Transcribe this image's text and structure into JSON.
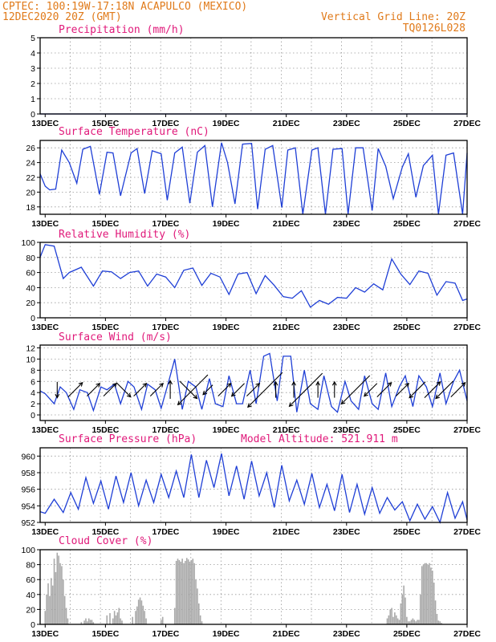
{
  "header": {
    "line1_left": "CPTEC:   100:19W-17:18N  ACAPULCO (MEXICO)",
    "line2_left": "12DEC2020 20Z (GMT)",
    "line2_right": "Vertical Grid Line: 20Z",
    "line3_right": "TQ0126L028",
    "model_altitude": "Model Altitude: 521.911 m"
  },
  "colors": {
    "header": "#e07a1a",
    "panel_title": "#e0197a",
    "series": "#1f3fd6",
    "cloud": "#a9a9a9"
  },
  "x_axis": {
    "tick_labels": [
      "13DEC",
      "15DEC",
      "17DEC",
      "19DEC",
      "21DEC",
      "23DEC",
      "25DEC",
      "27DEC"
    ],
    "start_day": 12.833,
    "end_day": 27.0,
    "tick_days": [
      13,
      15,
      17,
      19,
      21,
      23,
      25,
      27
    ],
    "vertical_grid": "20Z"
  },
  "chart_data": [
    {
      "type": "line",
      "title": "Precipitation (mm/h)",
      "ylim": [
        0,
        5
      ],
      "yticks": [
        0,
        1,
        2,
        3,
        4,
        5
      ],
      "grid": true,
      "x": [
        12.83,
        27.0
      ],
      "series": [
        {
          "values": [
            0,
            0
          ]
        }
      ]
    },
    {
      "type": "line",
      "title": "Surface Temperature (nC)",
      "ylim": [
        17,
        27
      ],
      "yticks": [
        18,
        20,
        22,
        24,
        26
      ],
      "grid": true,
      "x": [
        12.83,
        13.0,
        13.15,
        13.35,
        13.55,
        13.8,
        14.05,
        14.25,
        14.5,
        14.8,
        15.05,
        15.25,
        15.5,
        15.85,
        16.05,
        16.3,
        16.55,
        16.85,
        17.05,
        17.3,
        17.55,
        17.8,
        18.05,
        18.3,
        18.55,
        18.85,
        19.05,
        19.3,
        19.55,
        19.85,
        20.05,
        20.3,
        20.55,
        20.85,
        21.05,
        21.3,
        21.55,
        21.85,
        22.05,
        22.3,
        22.55,
        22.85,
        23.05,
        23.3,
        23.55,
        23.85,
        24.05,
        24.3,
        24.55,
        24.85,
        25.05,
        25.3,
        25.55,
        25.85,
        26.05,
        26.3,
        26.55,
        26.85,
        27.0
      ],
      "series": [
        {
          "values": [
            22.5,
            20.8,
            20.3,
            20.4,
            25.7,
            24.0,
            21.2,
            25.8,
            26.2,
            19.7,
            25.4,
            25.3,
            19.5,
            25.3,
            25.9,
            19.8,
            25.6,
            25.2,
            18.9,
            25.3,
            26.1,
            18.5,
            25.4,
            26.3,
            18.0,
            26.7,
            24.0,
            18.4,
            26.5,
            26.6,
            17.7,
            25.8,
            26.3,
            17.9,
            25.7,
            26.0,
            16.8,
            25.7,
            26.0,
            16.5,
            25.8,
            25.9,
            16.5,
            26.0,
            26.0,
            17.5,
            25.9,
            23.5,
            19.1,
            23.4,
            25.2,
            19.3,
            23.6,
            25.0,
            16.8,
            25.0,
            25.3,
            17.0,
            25.3
          ]
        }
      ]
    },
    {
      "type": "line",
      "title": "Relative Humidity (%)",
      "ylim": [
        0,
        100
      ],
      "yticks": [
        0,
        20,
        40,
        60,
        80,
        100
      ],
      "grid": true,
      "x": [
        12.83,
        13.0,
        13.3,
        13.6,
        13.8,
        14.2,
        14.6,
        14.9,
        15.2,
        15.5,
        15.8,
        16.1,
        16.4,
        16.7,
        17.0,
        17.3,
        17.6,
        17.9,
        18.2,
        18.5,
        18.8,
        19.1,
        19.4,
        19.7,
        20.0,
        20.3,
        20.6,
        20.9,
        21.2,
        21.5,
        21.8,
        22.1,
        22.4,
        22.7,
        23.0,
        23.3,
        23.6,
        23.9,
        24.2,
        24.5,
        24.8,
        25.1,
        25.4,
        25.7,
        26.0,
        26.3,
        26.6,
        26.85,
        27.0
      ],
      "series": [
        {
          "values": [
            80,
            97,
            95,
            52,
            60,
            67,
            42,
            62,
            61,
            52,
            60,
            62,
            42,
            58,
            54,
            40,
            63,
            66,
            43,
            59,
            54,
            31,
            58,
            60,
            32,
            56,
            43,
            28,
            26,
            36,
            14,
            23,
            18,
            27,
            26,
            40,
            34,
            45,
            37,
            78,
            58,
            44,
            62,
            59,
            30,
            48,
            46,
            23,
            25
          ]
        }
      ]
    },
    {
      "type": "line",
      "title": "Surface Wind (m/s)",
      "ylim": [
        -1,
        12.5
      ],
      "yticks": [
        0,
        2,
        4,
        6,
        8,
        10,
        12
      ],
      "grid": true,
      "x": [
        12.83,
        13.0,
        13.3,
        13.5,
        13.7,
        13.95,
        14.15,
        14.4,
        14.6,
        14.85,
        15.05,
        15.3,
        15.5,
        15.75,
        15.95,
        16.2,
        16.4,
        16.65,
        16.85,
        17.1,
        17.3,
        17.55,
        17.75,
        18.0,
        18.2,
        18.45,
        18.65,
        18.9,
        19.1,
        19.35,
        19.55,
        19.8,
        20.0,
        20.25,
        20.45,
        20.7,
        20.9,
        21.15,
        21.35,
        21.6,
        21.8,
        22.05,
        22.25,
        22.5,
        22.7,
        22.95,
        23.15,
        23.4,
        23.6,
        23.85,
        24.05,
        24.3,
        24.5,
        24.75,
        24.95,
        25.2,
        25.4,
        25.65,
        25.85,
        26.1,
        26.3,
        26.55,
        26.75,
        27.0
      ],
      "series": [
        {
          "values": [
            4.3,
            3.8,
            2.0,
            5.0,
            4.0,
            1.0,
            4.5,
            4.0,
            0.8,
            5.0,
            4.5,
            5.5,
            2.0,
            6.0,
            5.0,
            1.0,
            5.5,
            4.5,
            1.2,
            6.0,
            10.0,
            1.0,
            6.0,
            5.0,
            1.0,
            6.5,
            2.0,
            1.5,
            7.0,
            2.0,
            2.0,
            8.0,
            2.0,
            10.5,
            11.0,
            2.5,
            10.5,
            10.5,
            0.5,
            8.0,
            2.0,
            1.0,
            7.0,
            1.5,
            0.5,
            6.0,
            2.5,
            1.0,
            7.0,
            2.0,
            1.0,
            7.5,
            1.5,
            5.0,
            7.0,
            1.5,
            7.0,
            5.0,
            1.5,
            7.5,
            2.0,
            6.0,
            8.0,
            2.5
          ]
        }
      ],
      "arrows": [
        {
          "day": 13.4,
          "speed": 2.5,
          "toward": "S"
        },
        {
          "day": 14.0,
          "speed": 3.5,
          "toward": "NE"
        },
        {
          "day": 14.6,
          "speed": 3.0,
          "toward": "NE"
        },
        {
          "day": 15.15,
          "speed": 3.0,
          "toward": "NE"
        },
        {
          "day": 15.6,
          "speed": 3.5,
          "toward": "SE"
        },
        {
          "day": 16.15,
          "speed": 3.0,
          "toward": "NE"
        },
        {
          "day": 16.7,
          "speed": 3.0,
          "toward": "NE"
        },
        {
          "day": 17.15,
          "speed": 3.0,
          "toward": "N"
        },
        {
          "day": 17.75,
          "speed": 4.5,
          "toward": "SE"
        },
        {
          "day": 17.9,
          "speed": 8.5,
          "toward": "SW"
        },
        {
          "day": 18.4,
          "speed": 2.0,
          "toward": "SW"
        },
        {
          "day": 18.95,
          "speed": 3.0,
          "toward": "NE"
        },
        {
          "day": 19.4,
          "speed": 3.0,
          "toward": "SW"
        },
        {
          "day": 19.9,
          "speed": 3.0,
          "toward": "NE"
        },
        {
          "day": 20.3,
          "speed": 10.0,
          "toward": "SW"
        },
        {
          "day": 20.65,
          "speed": 2.5,
          "toward": "N"
        },
        {
          "day": 21.25,
          "speed": 2.5,
          "toward": "N"
        },
        {
          "day": 21.65,
          "speed": 9.5,
          "toward": "SW"
        },
        {
          "day": 22.05,
          "speed": 2.5,
          "toward": "N"
        },
        {
          "day": 22.6,
          "speed": 2.5,
          "toward": "N"
        },
        {
          "day": 23.3,
          "speed": 8.0,
          "toward": "SW"
        },
        {
          "day": 23.8,
          "speed": 3.0,
          "toward": "SW"
        },
        {
          "day": 24.25,
          "speed": 3.5,
          "toward": "NE"
        },
        {
          "day": 24.85,
          "speed": 3.0,
          "toward": "NE"
        },
        {
          "day": 25.35,
          "speed": 4.0,
          "toward": "SW"
        },
        {
          "day": 25.85,
          "speed": 4.0,
          "toward": "NE"
        },
        {
          "day": 26.25,
          "speed": 4.5,
          "toward": "SW"
        },
        {
          "day": 26.7,
          "speed": 3.5,
          "toward": "NE"
        }
      ]
    },
    {
      "type": "line",
      "title": "Surface Pressure (hPa)",
      "ylim": [
        952,
        961
      ],
      "yticks": [
        952,
        954,
        956,
        958,
        960
      ],
      "grid": true,
      "x": [
        12.83,
        13.0,
        13.3,
        13.6,
        13.85,
        14.1,
        14.35,
        14.6,
        14.85,
        15.1,
        15.35,
        15.6,
        15.85,
        16.1,
        16.35,
        16.6,
        16.85,
        17.1,
        17.35,
        17.6,
        17.85,
        18.1,
        18.35,
        18.6,
        18.85,
        19.1,
        19.35,
        19.6,
        19.85,
        20.1,
        20.35,
        20.6,
        20.85,
        21.1,
        21.35,
        21.6,
        21.85,
        22.1,
        22.35,
        22.6,
        22.85,
        23.1,
        23.35,
        23.6,
        23.85,
        24.1,
        24.35,
        24.6,
        24.85,
        25.1,
        25.35,
        25.6,
        25.85,
        26.1,
        26.35,
        26.6,
        26.85,
        27.0
      ],
      "series": [
        {
          "values": [
            953.3,
            953.1,
            954.8,
            953.2,
            955.6,
            953.6,
            957.4,
            954.3,
            957.0,
            953.6,
            957.6,
            954.4,
            958.0,
            954.0,
            957.1,
            954.4,
            957.8,
            955.0,
            958.2,
            955.0,
            960.2,
            955.0,
            959.5,
            956.2,
            960.3,
            955.2,
            958.8,
            954.8,
            959.4,
            955.2,
            958.0,
            953.8,
            958.9,
            954.6,
            957.1,
            954.2,
            957.9,
            953.8,
            956.6,
            953.4,
            957.8,
            953.2,
            956.6,
            953.0,
            956.2,
            953.1,
            955.0,
            953.5,
            954.5,
            952.2,
            954.2,
            952.4,
            953.9,
            951.2,
            955.6,
            952.5,
            954.5,
            952.3
          ]
        }
      ]
    },
    {
      "type": "bar",
      "title": "Cloud Cover (%)",
      "ylim": [
        0,
        100
      ],
      "yticks": [
        0,
        20,
        40,
        60,
        80,
        100
      ],
      "grid": true,
      "x": [
        13.0,
        13.05,
        13.1,
        13.15,
        13.2,
        13.25,
        13.3,
        13.35,
        13.4,
        13.45,
        13.5,
        13.55,
        13.6,
        13.65,
        13.7,
        13.75,
        14.2,
        14.3,
        14.35,
        14.4,
        14.45,
        14.5,
        14.55,
        14.6,
        15.05,
        15.15,
        15.25,
        15.3,
        15.35,
        15.4,
        15.45,
        15.5,
        15.55,
        15.9,
        16.0,
        16.05,
        16.1,
        16.15,
        16.2,
        16.25,
        16.3,
        16.35,
        16.85,
        16.9,
        17.3,
        17.35,
        17.4,
        17.45,
        17.5,
        17.55,
        17.6,
        17.65,
        17.7,
        17.75,
        17.8,
        17.85,
        17.9,
        17.95,
        18.0,
        18.05,
        18.1,
        18.15,
        18.2,
        24.35,
        24.4,
        24.45,
        24.5,
        24.55,
        24.6,
        24.65,
        24.7,
        24.75,
        24.8,
        24.85,
        24.9,
        24.95,
        25.0,
        25.05,
        25.1,
        25.15,
        25.2,
        25.25,
        25.3,
        25.35,
        25.4,
        25.45,
        25.5,
        25.55,
        25.6,
        25.65,
        25.7,
        25.75,
        25.8,
        25.85,
        25.9,
        25.95,
        26.0,
        26.05,
        26.1,
        26.15
      ],
      "series": [
        {
          "values": [
            18,
            40,
            55,
            38,
            62,
            52,
            88,
            70,
            96,
            92,
            82,
            78,
            60,
            38,
            22,
            8,
            3,
            5,
            8,
            4,
            8,
            6,
            6,
            3,
            12,
            15,
            8,
            18,
            12,
            16,
            22,
            8,
            5,
            10,
            18,
            24,
            33,
            36,
            32,
            25,
            18,
            8,
            6,
            10,
            22,
            85,
            88,
            86,
            84,
            88,
            82,
            85,
            89,
            87,
            84,
            86,
            88,
            82,
            60,
            48,
            28,
            12,
            4,
            8,
            12,
            20,
            22,
            10,
            16,
            12,
            8,
            6,
            28,
            40,
            52,
            36,
            10,
            4,
            4,
            6,
            8,
            6,
            4,
            6,
            6,
            40,
            78,
            80,
            82,
            82,
            80,
            82,
            76,
            72,
            56,
            32,
            14,
            5,
            4,
            2
          ]
        }
      ]
    }
  ]
}
